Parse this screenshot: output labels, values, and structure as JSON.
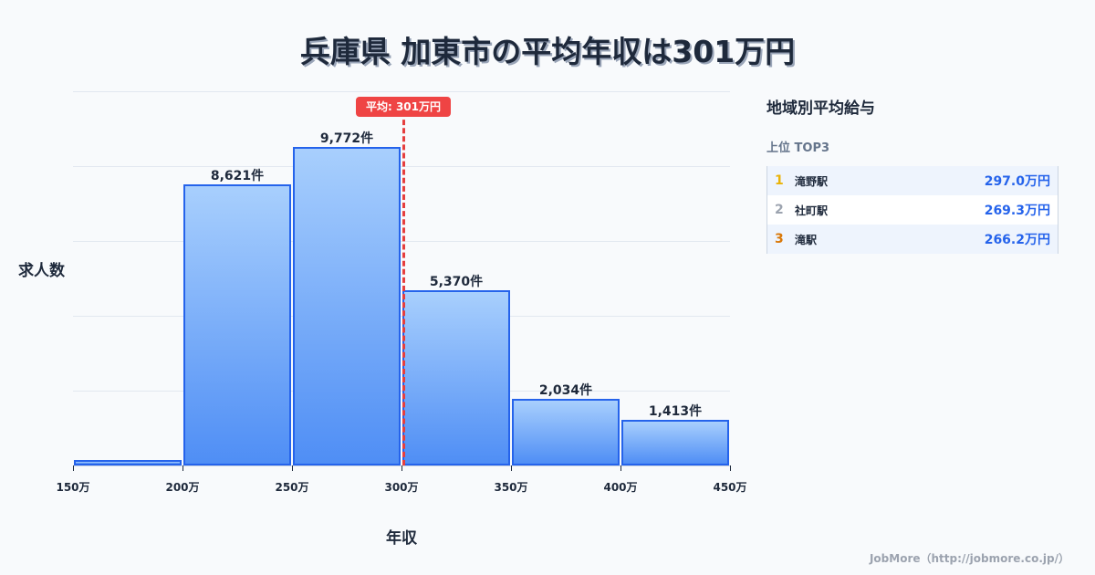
{
  "title": "兵庫県 加東市の平均年収は301万円",
  "chart_data": {
    "type": "bar",
    "title": "兵庫県 加東市の平均年収は301万円",
    "xlabel": "年収",
    "ylabel": "求人数",
    "x_ticks": [
      "150万",
      "200万",
      "250万",
      "300万",
      "350万",
      "400万",
      "450万"
    ],
    "categories": [
      "150-200万",
      "200-250万",
      "250-300万",
      "300-350万",
      "350-400万",
      "400-450万"
    ],
    "values": [
      170,
      8621,
      9772,
      5370,
      2034,
      1413
    ],
    "value_labels": [
      "",
      "8,621件",
      "9,772件",
      "5,370件",
      "2,034件",
      "1,413件"
    ],
    "xlim": [
      150,
      450
    ],
    "ylim": [
      0,
      11500
    ],
    "grid": true,
    "annotations": [
      {
        "type": "vline",
        "x": 301,
        "label": "平均: 301万円",
        "color": "#ef4444"
      }
    ]
  },
  "avg_badge": "平均: 301万円",
  "sidebar": {
    "title": "地域別平均給与",
    "subtitle": "上位 TOP3",
    "rows": [
      {
        "rank": "1",
        "name": "滝野駅",
        "value": "297.0万円",
        "rank_color": "#eab308"
      },
      {
        "rank": "2",
        "name": "社町駅",
        "value": "269.3万円",
        "rank_color": "#9ca3af"
      },
      {
        "rank": "3",
        "name": "滝駅",
        "value": "266.2万円",
        "rank_color": "#d97706"
      }
    ]
  },
  "footer": "JobMore（http://jobmore.co.jp/）"
}
